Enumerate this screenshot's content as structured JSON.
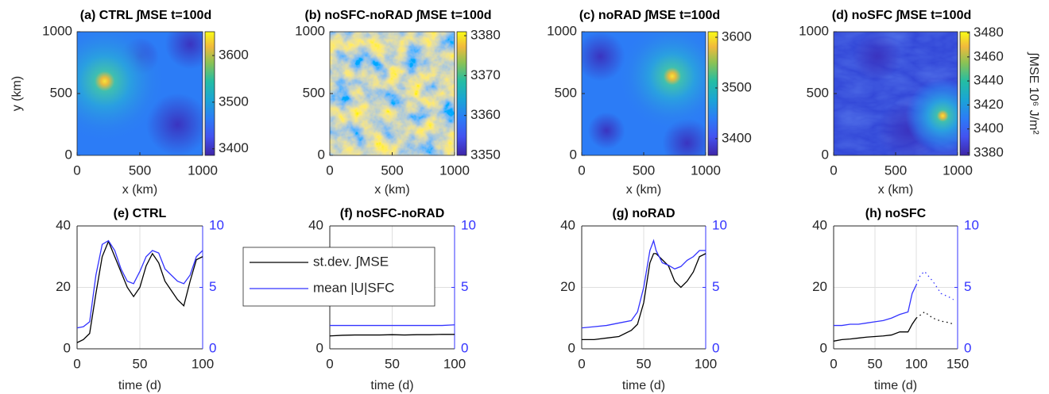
{
  "chart_data": [
    {
      "type": "heatmap",
      "title": "(a) CTRL  ∫MSE t=100d",
      "xlabel": "x (km)",
      "ylabel": "y (km)",
      "xlim": [
        0,
        1000
      ],
      "ylim": [
        0,
        1000
      ],
      "xticks": [
        0,
        500,
        1000
      ],
      "yticks": [
        0,
        500,
        1000
      ],
      "clim": [
        3386,
        3651
      ],
      "cticks": [
        3400,
        3500,
        3600
      ]
    },
    {
      "type": "heatmap",
      "title": "(b) noSFC-noRAD  ∫MSE t=100d",
      "xlabel": "x (km)",
      "xlim": [
        0,
        1000
      ],
      "ylim": [
        0,
        1000
      ],
      "xticks": [
        0,
        500,
        1000
      ],
      "yticks": [
        0,
        500,
        1000
      ],
      "clim": [
        3350,
        3381
      ],
      "cticks": [
        3350,
        3360,
        3370,
        3380
      ]
    },
    {
      "type": "heatmap",
      "title": "(c) noRAD  ∫MSE t=100d",
      "xlabel": "x (km)",
      "xlim": [
        0,
        1000
      ],
      "ylim": [
        0,
        1000
      ],
      "xticks": [
        0,
        500,
        1000
      ],
      "yticks": [
        0,
        500,
        1000
      ],
      "clim": [
        3367,
        3611
      ],
      "cticks": [
        3400,
        3500,
        3600
      ]
    },
    {
      "type": "heatmap",
      "title": "(d) noSFC  ∫MSE t=100d",
      "xlabel": "x (km)",
      "xlim": [
        0,
        1000
      ],
      "ylim": [
        0,
        1000
      ],
      "xticks": [
        0,
        500,
        1000
      ],
      "yticks": [
        0,
        500,
        1000
      ],
      "clim": [
        3378,
        3481
      ],
      "cticks": [
        3380,
        3400,
        3420,
        3440,
        3460,
        3480
      ],
      "colorbar_label": "∫MSE 10⁶ J/m²"
    },
    {
      "type": "line",
      "title": "(e) CTRL",
      "xlabel": "time (d)",
      "grid": true,
      "xlim": [
        0,
        100
      ],
      "xticks": [
        0,
        50,
        100
      ],
      "ylim": [
        0,
        40
      ],
      "yticks": [
        0,
        20,
        40
      ],
      "y2lim": [
        0,
        10
      ],
      "y2ticks": [
        0,
        5,
        10
      ],
      "x": [
        0,
        5,
        10,
        15,
        20,
        25,
        30,
        35,
        40,
        45,
        50,
        55,
        60,
        65,
        70,
        75,
        80,
        85,
        90,
        95,
        100
      ],
      "series": [
        {
          "color": "#000000",
          "values": [
            2,
            3,
            5,
            18,
            30,
            35,
            30,
            25,
            20,
            17,
            20,
            27,
            31,
            28,
            22,
            19,
            16,
            14,
            22,
            29,
            30
          ]
        },
        {
          "color": "#3333ff",
          "axis": "y2",
          "values": [
            1.7,
            1.8,
            2.2,
            6,
            8.5,
            8.8,
            8,
            6.5,
            5.5,
            5.3,
            6.3,
            7.5,
            8,
            7.8,
            6.5,
            6,
            5.5,
            5.3,
            6,
            7.5,
            8
          ]
        }
      ]
    },
    {
      "type": "line",
      "title": "(f) noSFC-noRAD",
      "xlabel": "time (d)",
      "grid": true,
      "legend": "left",
      "xlim": [
        0,
        100
      ],
      "xticks": [
        0,
        50,
        100
      ],
      "ylim": [
        0,
        40
      ],
      "yticks": [
        0,
        20,
        40
      ],
      "y2lim": [
        0,
        10
      ],
      "y2ticks": [
        0,
        5,
        10
      ],
      "x": [
        0,
        10,
        20,
        30,
        40,
        50,
        60,
        70,
        80,
        90,
        100
      ],
      "series": [
        {
          "name": "st.dev. ∫MSE",
          "color": "#000000",
          "values": [
            4.2,
            4.4,
            4.5,
            4.5,
            4.5,
            4.6,
            4.5,
            4.6,
            4.6,
            4.7,
            4.7
          ]
        },
        {
          "name": "mean |U|SFC",
          "color": "#3333ff",
          "axis": "y2",
          "values": [
            1.9,
            1.9,
            1.9,
            1.9,
            1.9,
            1.9,
            1.9,
            1.9,
            1.9,
            1.9,
            1.95
          ]
        }
      ]
    },
    {
      "type": "line",
      "title": "(g) noRAD",
      "xlabel": "time (d)",
      "grid": true,
      "xlim": [
        0,
        100
      ],
      "xticks": [
        0,
        50,
        100
      ],
      "ylim": [
        0,
        40
      ],
      "yticks": [
        0,
        20,
        40
      ],
      "y2lim": [
        0,
        10
      ],
      "y2ticks": [
        0,
        5,
        10
      ],
      "x": [
        0,
        10,
        20,
        30,
        40,
        45,
        50,
        55,
        58,
        60,
        65,
        70,
        75,
        80,
        85,
        90,
        95,
        100
      ],
      "series": [
        {
          "color": "#000000",
          "values": [
            3,
            3,
            3.5,
            4,
            6,
            8,
            15,
            28,
            31,
            31,
            29,
            27,
            22,
            20,
            22,
            25,
            30,
            31
          ]
        },
        {
          "color": "#3333ff",
          "axis": "y2",
          "values": [
            1.7,
            1.8,
            1.9,
            2.1,
            2.3,
            3,
            5,
            8,
            8.8,
            8,
            7,
            6.8,
            6.5,
            6.7,
            7.2,
            7.5,
            8,
            8
          ]
        }
      ]
    },
    {
      "type": "line",
      "title": "(h) noSFC",
      "xlabel": "time (d)",
      "grid": true,
      "xlim": [
        0,
        150
      ],
      "xticks": [
        0,
        50,
        100,
        150
      ],
      "ylim": [
        0,
        40
      ],
      "yticks": [
        0,
        20,
        40
      ],
      "y2lim": [
        0,
        10
      ],
      "y2ticks": [
        0,
        5,
        10
      ],
      "x": [
        0,
        10,
        20,
        30,
        40,
        50,
        60,
        70,
        80,
        90,
        95,
        100,
        105,
        110,
        120,
        130,
        140,
        145
      ],
      "series": [
        {
          "color": "#000000",
          "values": [
            2.5,
            3,
            3.2,
            3.5,
            3.8,
            4,
            4.2,
            4.5,
            5.5,
            5.5,
            8,
            10,
            null,
            null,
            null,
            null,
            null,
            null
          ]
        },
        {
          "color": "#000000",
          "style": "dotted",
          "values": [
            null,
            null,
            null,
            null,
            null,
            null,
            null,
            null,
            null,
            null,
            null,
            10,
            11,
            12,
            10,
            9,
            8.5,
            8
          ]
        },
        {
          "color": "#3333ff",
          "axis": "y2",
          "values": [
            1.9,
            1.9,
            2,
            2,
            2.1,
            2.2,
            2.3,
            2.5,
            2.8,
            3,
            4.5,
            5.2,
            null,
            null,
            null,
            null,
            null,
            null
          ]
        },
        {
          "color": "#3333ff",
          "axis": "y2",
          "style": "dotted",
          "values": [
            null,
            null,
            null,
            null,
            null,
            null,
            null,
            null,
            null,
            null,
            null,
            5.2,
            6,
            6.3,
            5.5,
            4.5,
            4.2,
            4
          ]
        }
      ]
    }
  ]
}
